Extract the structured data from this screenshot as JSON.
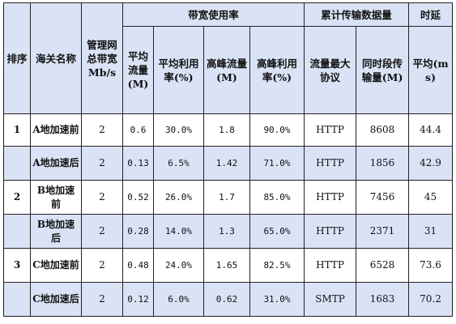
{
  "header": {
    "group_bandwidth": "带宽使用率",
    "group_transfer": "累计传输数据量",
    "group_latency": "时延",
    "rank": "排序",
    "name": "海关名称",
    "total_bw": "管理网总带宽Mb/s",
    "avg_flow": "平均流量(M)",
    "avg_util": "平均利用率(%)",
    "peak_flow": "高峰流量(M)",
    "peak_util": "高峰利用率(%)",
    "max_proto": "流量最大协议",
    "period_volume": "同时段传输量(M)",
    "avg_latency": "平均(ms)"
  },
  "rows": [
    {
      "rank": "1",
      "name": "A地加速前",
      "bw": "2",
      "avg_flow": "0.6",
      "avg_util": "30.0%",
      "peak_flow": "1.8",
      "peak_util": "90.0%",
      "proto": "HTTP",
      "volume": "8608",
      "latency": "44.4"
    },
    {
      "rank": "",
      "name": "A地加速后",
      "bw": "2",
      "avg_flow": "0.13",
      "avg_util": "6.5%",
      "peak_flow": "1.42",
      "peak_util": "71.0%",
      "proto": "HTTP",
      "volume": "1856",
      "latency": "42.9"
    },
    {
      "rank": "2",
      "name": "B地加速前",
      "bw": "2",
      "avg_flow": "0.52",
      "avg_util": "26.0%",
      "peak_flow": "1.7",
      "peak_util": "85.0%",
      "proto": "HTTP",
      "volume": "7456",
      "latency": "45"
    },
    {
      "rank": "",
      "name": "B地加速后",
      "bw": "2",
      "avg_flow": "0.28",
      "avg_util": "14.0%",
      "peak_flow": "1.3",
      "peak_util": "65.0%",
      "proto": "HTTP",
      "volume": "2371",
      "latency": "31"
    },
    {
      "rank": "3",
      "name": "C地加速前",
      "bw": "2",
      "avg_flow": "0.48",
      "avg_util": "24.0%",
      "peak_flow": "1.65",
      "peak_util": "82.5%",
      "proto": "HTTP",
      "volume": "6528",
      "latency": "73.6"
    },
    {
      "rank": "",
      "name": "C地加速后",
      "bw": "2",
      "avg_flow": "0.12",
      "avg_util": "6.0%",
      "peak_flow": "0.62",
      "peak_util": "31.0%",
      "proto": "SMTP",
      "volume": "1683",
      "latency": "70.2"
    }
  ]
}
